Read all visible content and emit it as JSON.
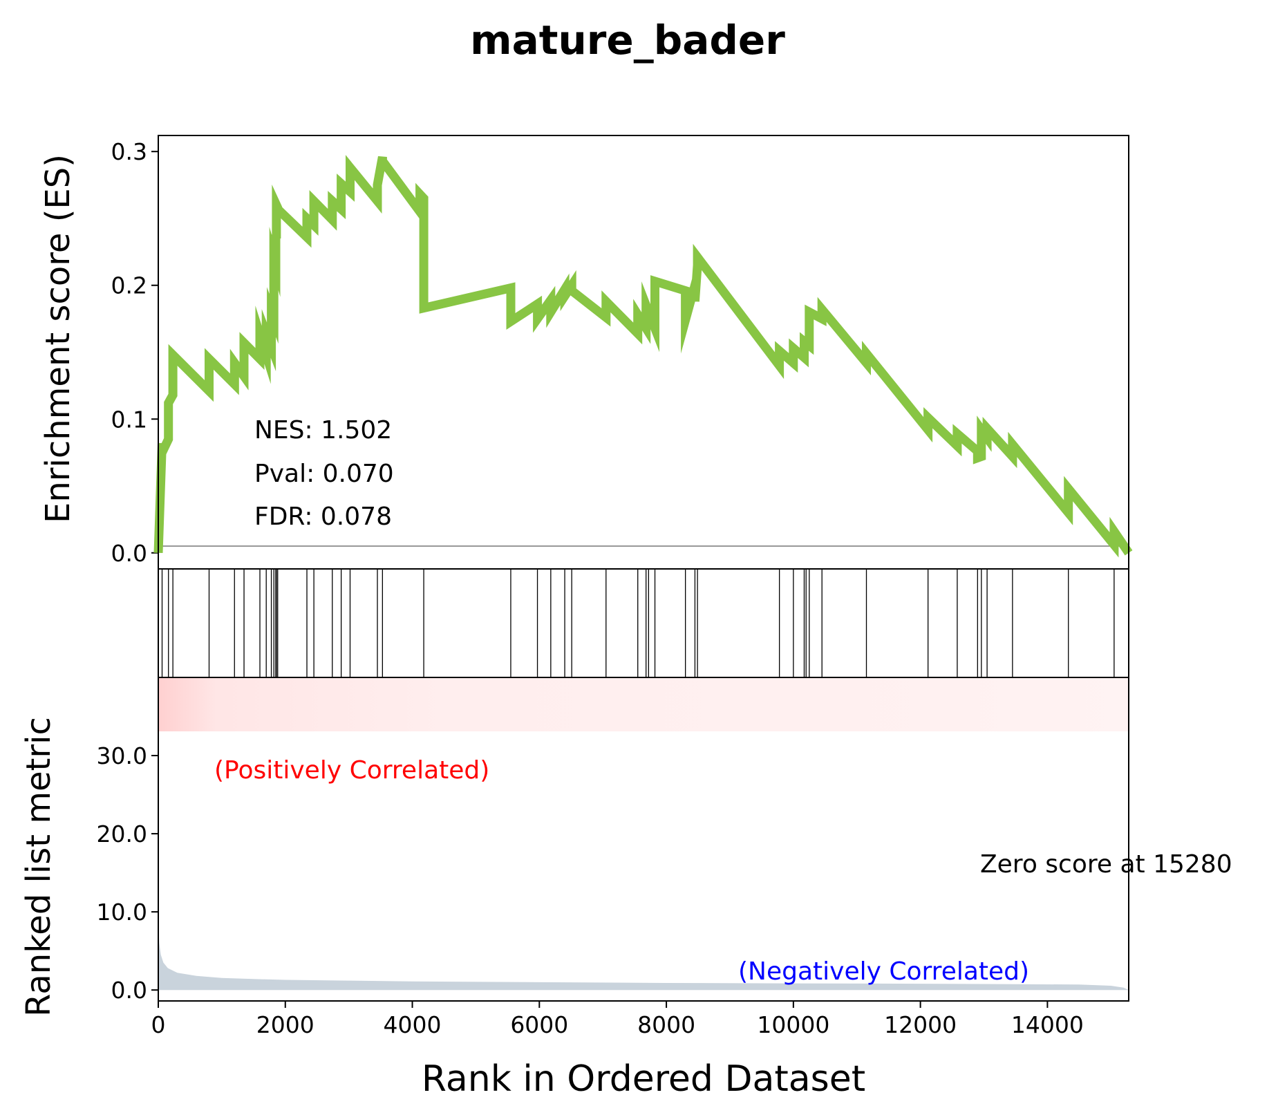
{
  "figure_title": "mature_bader",
  "chart_data": [
    {
      "type": "line",
      "panel": "running-enrichment-score",
      "ylabel": "Enrichment score (ES)",
      "xlim": [
        0,
        15280
      ],
      "ylim": [
        -0.012,
        0.312
      ],
      "yticks": [
        0.0,
        0.1,
        0.2,
        0.3
      ],
      "ytick_labels": [
        "0.0",
        "0.1",
        "0.2",
        "0.3"
      ],
      "line_color": "#88c544",
      "series": [
        {
          "x": [
            0,
            60,
            60,
            160,
            160,
            230,
            230,
            800,
            800,
            1200,
            1200,
            1350,
            1350,
            1600,
            1600,
            1700,
            1700,
            1780,
            1780,
            1820,
            1820,
            1850,
            1850,
            1860,
            1860,
            1880,
            1880,
            2340,
            2340,
            2450,
            2450,
            2740,
            2740,
            2880,
            2880,
            3020,
            3020,
            3450,
            3450,
            3530,
            3530,
            4120,
            4120,
            4180,
            4180,
            5550,
            5550,
            5970,
            5970,
            6180,
            6180,
            6400,
            6400,
            6510,
            6510,
            7050,
            7050,
            7550,
            7550,
            7680,
            7680,
            7820,
            7820,
            8300,
            8300,
            8450,
            8450,
            8490,
            8490,
            9780,
            9780,
            10000,
            10000,
            10170,
            10170,
            10250,
            10250,
            10450,
            10450,
            11150,
            11150,
            12120,
            12120,
            12580,
            12580,
            12900,
            12900,
            12960,
            12960,
            13050,
            13050,
            13450,
            13450,
            14330,
            14330,
            15050,
            15050,
            15280
          ],
          "y": [
            0,
            0.082,
            0.075,
            0.085,
            0.112,
            0.118,
            0.148,
            0.121,
            0.145,
            0.126,
            0.142,
            0.132,
            0.157,
            0.145,
            0.163,
            0.148,
            0.164,
            0.154,
            0.18,
            0.175,
            0.22,
            0.215,
            0.238,
            0.235,
            0.26,
            0.258,
            0.257,
            0.236,
            0.25,
            0.245,
            0.263,
            0.249,
            0.263,
            0.257,
            0.276,
            0.27,
            0.288,
            0.263,
            0.275,
            0.296,
            0.293,
            0.255,
            0.268,
            0.265,
            0.183,
            0.198,
            0.173,
            0.186,
            0.175,
            0.189,
            0.18,
            0.197,
            0.192,
            0.2,
            0.196,
            0.176,
            0.188,
            0.164,
            0.178,
            0.168,
            0.185,
            0.168,
            0.203,
            0.196,
            0.174,
            0.2,
            0.188,
            0.215,
            0.221,
            0.14,
            0.151,
            0.142,
            0.153,
            0.146,
            0.158,
            0.155,
            0.18,
            0.175,
            0.182,
            0.142,
            0.149,
            0.092,
            0.101,
            0.08,
            0.089,
            0.076,
            0.071,
            0.072,
            0.092,
            0.086,
            0.093,
            0.072,
            0.081,
            0.03,
            0.048,
            0.006,
            0.016,
            0.0
          ]
        }
      ],
      "annotations": {
        "nes": "NES: 1.502",
        "pval": "Pval: 0.070",
        "fdr": "FDR: 0.078"
      }
    },
    {
      "type": "barcode",
      "panel": "gene-hits",
      "xlim": [
        0,
        15280
      ],
      "hits": [
        60,
        160,
        230,
        800,
        1200,
        1350,
        1600,
        1700,
        1780,
        1820,
        1850,
        1860,
        1880,
        2340,
        2450,
        2740,
        2880,
        3020,
        3450,
        3530,
        4180,
        5550,
        5970,
        6180,
        6400,
        6510,
        7050,
        7550,
        7680,
        7720,
        7820,
        8300,
        8450,
        8490,
        9780,
        10000,
        10170,
        10200,
        10250,
        10450,
        11150,
        12120,
        12580,
        12900,
        12960,
        13050,
        13450,
        14330,
        15050
      ]
    },
    {
      "type": "area",
      "panel": "ranked-list-metric",
      "ylabel": "Ranked list metric",
      "xlabel": "Rank in Ordered Dataset",
      "xlim": [
        0,
        15280
      ],
      "ylim": [
        -1.4,
        40.0
      ],
      "xticks": [
        0,
        2000,
        4000,
        6000,
        8000,
        10000,
        12000,
        14000
      ],
      "xtick_labels": [
        "0",
        "2000",
        "4000",
        "6000",
        "8000",
        "10000",
        "12000",
        "14000"
      ],
      "yticks": [
        0,
        10,
        20,
        30
      ],
      "ytick_labels": [
        "0.0",
        "10.0",
        "20.0",
        "30.0"
      ],
      "fill_color": "#c9d3dc",
      "series": [
        {
          "x": [
            0,
            15,
            40,
            80,
            150,
            300,
            600,
            1000,
            1500,
            2000,
            3000,
            4000,
            6000,
            8000,
            10000,
            12000,
            13500,
            14500,
            15000,
            15200,
            15280
          ],
          "y": [
            8.5,
            6.0,
            4.5,
            3.5,
            2.8,
            2.2,
            1.8,
            1.55,
            1.4,
            1.3,
            1.2,
            1.1,
            1.0,
            0.9,
            0.85,
            0.8,
            0.75,
            0.7,
            0.55,
            0.3,
            0.0
          ]
        }
      ],
      "annotations": {
        "positive": "(Positively Correlated)",
        "negative": "(Negatively Correlated)",
        "zero_score": "Zero score at 15280"
      },
      "annotation_colors": {
        "positive": "#ff0000",
        "negative": "#0000ff"
      }
    }
  ]
}
